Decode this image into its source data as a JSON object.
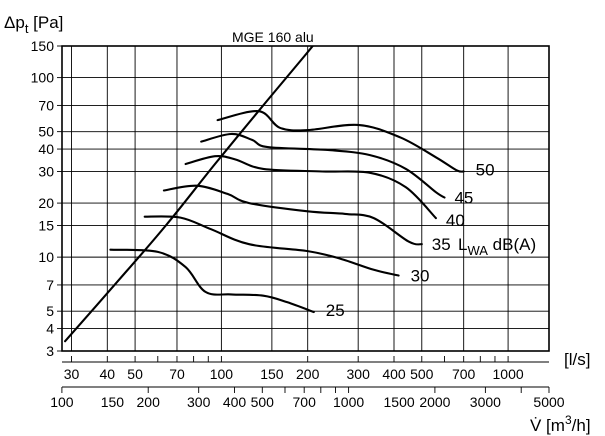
{
  "chart_data": {
    "type": "line",
    "title": "",
    "xlabel": "[l/s]",
    "xlabel2": "V̇ [m³/h]",
    "ylabel": "Δpt [Pa]",
    "x_scale": "log",
    "y_scale": "log",
    "xlim": [
      27.8,
      1389
    ],
    "ylim": [
      3,
      150
    ],
    "grid": true,
    "y_ticks": [
      {
        "value": 150,
        "label": "150"
      },
      {
        "value": 100,
        "label": "100"
      },
      {
        "value": 70,
        "label": "70"
      },
      {
        "value": 50,
        "label": "50"
      },
      {
        "value": 40,
        "label": "40"
      },
      {
        "value": 30,
        "label": "30"
      },
      {
        "value": 20,
        "label": "20"
      },
      {
        "value": 15,
        "label": "15"
      },
      {
        "value": 10,
        "label": "10"
      },
      {
        "value": 7,
        "label": "7"
      },
      {
        "value": 5,
        "label": "5"
      },
      {
        "value": 4,
        "label": "4"
      },
      {
        "value": 3,
        "label": "3"
      }
    ],
    "x_ticks_ls": [
      {
        "value": 30,
        "label": "30"
      },
      {
        "value": 40,
        "label": "40"
      },
      {
        "value": 50,
        "label": "50"
      },
      {
        "value": 70,
        "label": "70"
      },
      {
        "value": 100,
        "label": "100"
      },
      {
        "value": 150,
        "label": "150"
      },
      {
        "value": 200,
        "label": "200"
      },
      {
        "value": 300,
        "label": "300"
      },
      {
        "value": 400,
        "label": "400"
      },
      {
        "value": 500,
        "label": "500"
      },
      {
        "value": 700,
        "label": "700"
      },
      {
        "value": 1000,
        "label": "1000"
      }
    ],
    "x_ticks_m3h": [
      {
        "value": 100,
        "label": "100"
      },
      {
        "value": 150,
        "label": "150"
      },
      {
        "value": 200,
        "label": "200"
      },
      {
        "value": 300,
        "label": "300"
      },
      {
        "value": 400,
        "label": "400"
      },
      {
        "value": 500,
        "label": "500"
      },
      {
        "value": 700,
        "label": "700"
      },
      {
        "value": 1000,
        "label": "1000"
      },
      {
        "value": 1500,
        "label": "1500"
      },
      {
        "value": 2000,
        "label": "2000"
      },
      {
        "value": 3000,
        "label": "3000"
      },
      {
        "value": 5000,
        "label": "5000"
      }
    ],
    "system_curve": {
      "name": "MGE 160 alu",
      "points": [
        [
          28.5,
          3.4
        ],
        [
          44,
          7.5
        ],
        [
          64,
          15
        ],
        [
          95,
          33
        ],
        [
          145,
          75
        ],
        [
          195,
          132
        ],
        [
          215,
          160
        ]
      ]
    },
    "sound_label": "LWA dB(A)",
    "series": [
      {
        "name": "25",
        "points": [
          [
            41,
            11
          ],
          [
            60,
            10.7
          ],
          [
            75,
            8.8
          ],
          [
            88,
            6.4
          ],
          [
            108,
            6.2
          ],
          [
            140,
            6.1
          ],
          [
            170,
            5.6
          ],
          [
            210,
            4.95
          ]
        ]
      },
      {
        "name": "30",
        "points": [
          [
            54,
            16.8
          ],
          [
            72,
            16.6
          ],
          [
            92,
            14.3
          ],
          [
            125,
            11.8
          ],
          [
            200,
            10.8
          ],
          [
            260,
            9.8
          ],
          [
            340,
            8.5
          ],
          [
            415,
            7.9
          ]
        ]
      },
      {
        "name": "35",
        "points": [
          [
            63,
            23.5
          ],
          [
            82,
            25
          ],
          [
            105,
            22.5
          ],
          [
            125,
            20
          ],
          [
            200,
            18
          ],
          [
            270,
            17.4
          ],
          [
            340,
            16.5
          ],
          [
            450,
            12.2
          ],
          [
            500,
            11.8
          ]
        ]
      },
      {
        "name": "40",
        "points": [
          [
            75,
            33
          ],
          [
            95,
            36.5
          ],
          [
            112,
            35
          ],
          [
            140,
            31
          ],
          [
            225,
            30
          ],
          [
            330,
            29.5
          ],
          [
            440,
            24.5
          ],
          [
            560,
            16.5
          ]
        ]
      },
      {
        "name": "45",
        "points": [
          [
            85,
            44
          ],
          [
            108,
            48.5
          ],
          [
            128,
            45
          ],
          [
            145,
            41
          ],
          [
            235,
            39.5
          ],
          [
            330,
            37
          ],
          [
            440,
            31
          ],
          [
            560,
            23
          ],
          [
            600,
            21.5
          ]
        ]
      },
      {
        "name": "50",
        "points": [
          [
            97,
            58
          ],
          [
            135,
            65
          ],
          [
            160,
            52.5
          ],
          [
            200,
            51
          ],
          [
            300,
            54.5
          ],
          [
            420,
            46.5
          ],
          [
            560,
            36
          ],
          [
            660,
            30.5
          ],
          [
            700,
            30
          ]
        ]
      }
    ]
  }
}
